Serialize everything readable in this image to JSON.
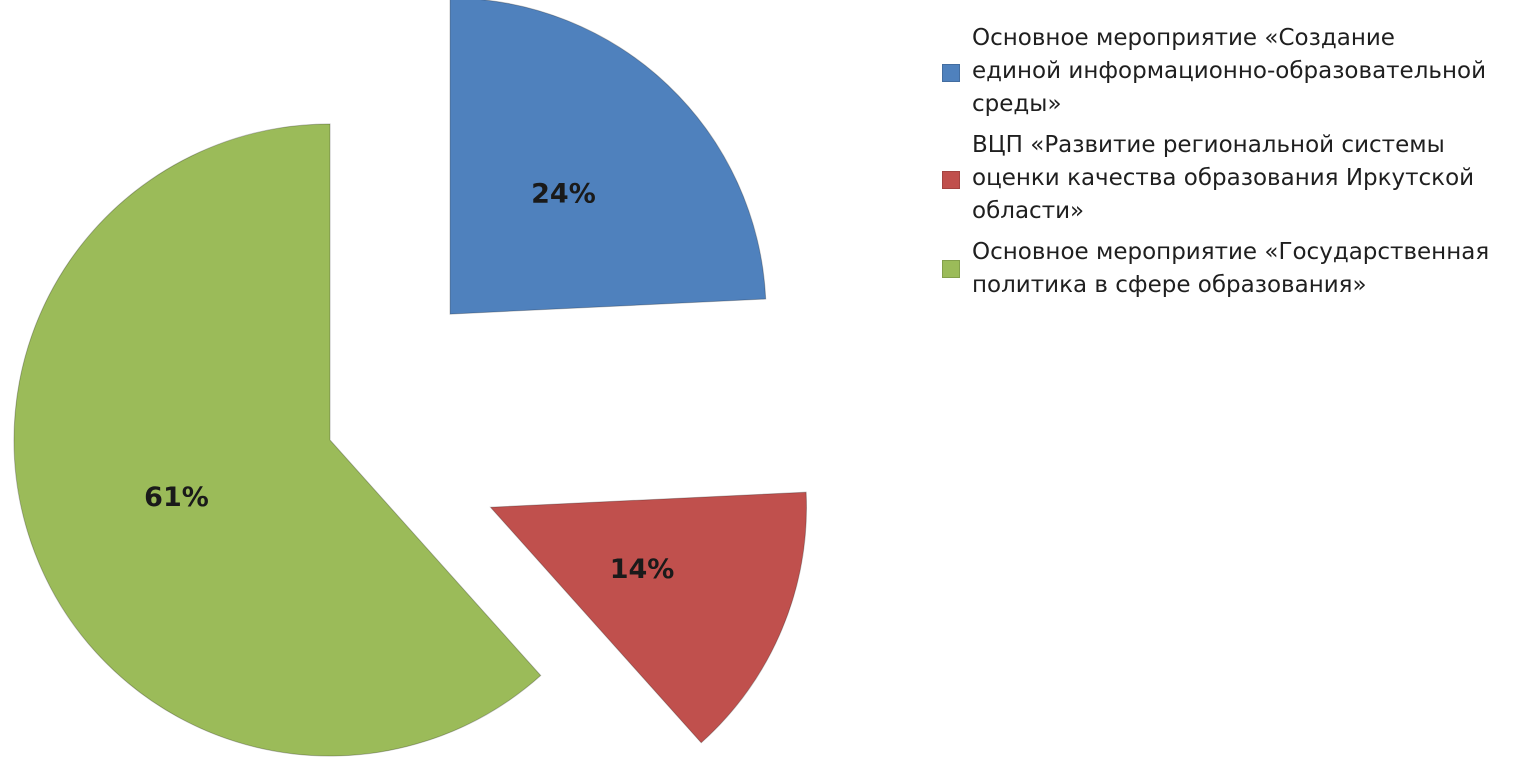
{
  "chart_data": {
    "type": "pie",
    "title": "",
    "slices": [
      {
        "label": "Основное мероприятие  «Создание единой информационно-образовательной среды»",
        "value": 24,
        "display": "24%",
        "color": "#4f81bd",
        "exploded": true
      },
      {
        "label": "ВЦП «Развитие региональной системы оценки качества образования Иркутской области»",
        "value": 14,
        "display": "14%",
        "color": "#c0504d",
        "exploded": true
      },
      {
        "label": "Основное мероприятие  «Государственная политика в сфере образования»",
        "value": 61,
        "display": "61%",
        "color": "#9bbb59",
        "exploded": false
      }
    ],
    "legend": {
      "placement": "right",
      "items": [
        {
          "text": "Основное мероприятие  «Создание\nединой информационно-образовательной\nсреды»",
          "color": "#4f81bd"
        },
        {
          "text": "ВЦП «Развитие региональной системы\nоценки качества образования Иркутской\nобласти»",
          "color": "#c0504d"
        },
        {
          "text": "Основное мероприятие  «Государственная\nполитика в сфере образования»",
          "color": "#9bbb59"
        }
      ]
    }
  }
}
